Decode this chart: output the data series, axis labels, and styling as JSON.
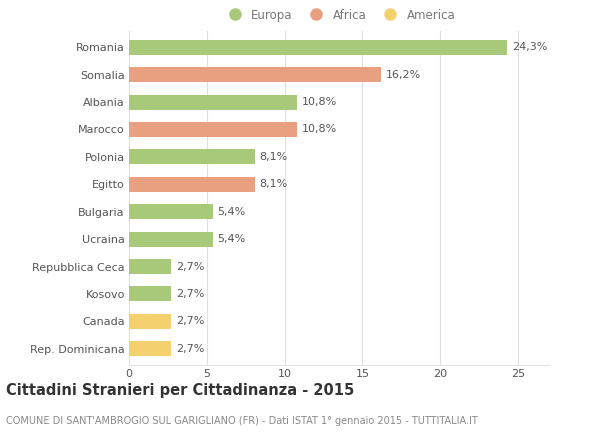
{
  "categories": [
    "Romania",
    "Somalia",
    "Albania",
    "Marocco",
    "Polonia",
    "Egitto",
    "Bulgaria",
    "Ucraina",
    "Repubblica Ceca",
    "Kosovo",
    "Canada",
    "Rep. Dominicana"
  ],
  "values": [
    24.3,
    16.2,
    10.8,
    10.8,
    8.1,
    8.1,
    5.4,
    5.4,
    2.7,
    2.7,
    2.7,
    2.7
  ],
  "labels": [
    "24,3%",
    "16,2%",
    "10,8%",
    "10,8%",
    "8,1%",
    "8,1%",
    "5,4%",
    "5,4%",
    "2,7%",
    "2,7%",
    "2,7%",
    "2,7%"
  ],
  "continents": [
    "Europa",
    "Africa",
    "Europa",
    "Africa",
    "Europa",
    "Africa",
    "Europa",
    "Europa",
    "Europa",
    "Europa",
    "America",
    "America"
  ],
  "colors": {
    "Europa": "#a8c87a",
    "Africa": "#e8a080",
    "America": "#f5d06e"
  },
  "legend_items": [
    "Europa",
    "Africa",
    "America"
  ],
  "xlim": [
    0,
    27
  ],
  "xticks": [
    0,
    5,
    10,
    15,
    20,
    25
  ],
  "title": "Cittadini Stranieri per Cittadinanza - 2015",
  "subtitle": "COMUNE DI SANT'AMBROGIO SUL GARIGLIANO (FR) - Dati ISTAT 1° gennaio 2015 - TUTTITALIA.IT",
  "background_color": "#ffffff",
  "grid_color": "#e0e0e0",
  "bar_height": 0.55,
  "label_fontsize": 8.0,
  "tick_fontsize": 8.0,
  "title_fontsize": 10.5,
  "subtitle_fontsize": 7.0,
  "legend_fontsize": 8.5
}
